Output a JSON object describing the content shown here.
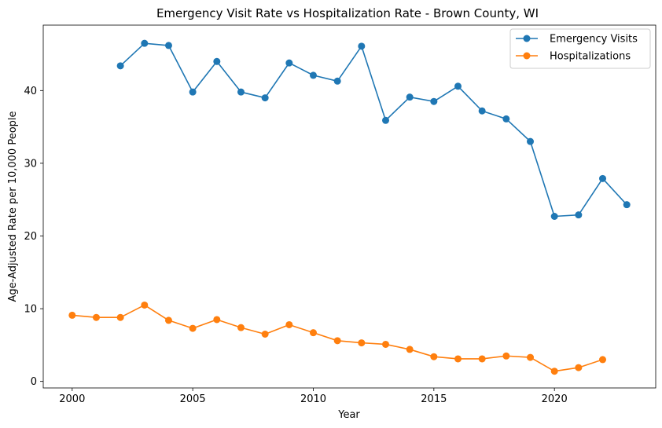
{
  "chart_data": {
    "type": "line",
    "title": "Emergency Visit Rate vs Hospitalization Rate - Brown County, WI",
    "xlabel": "Year",
    "ylabel": "Age-Adjusted Rate per 10,000 People",
    "xlim": [
      1998.8,
      2024.2
    ],
    "ylim": [
      -0.9,
      49.0
    ],
    "x_ticks": [
      2000,
      2005,
      2010,
      2015,
      2020
    ],
    "y_ticks": [
      0,
      10,
      20,
      30,
      40
    ],
    "grid": false,
    "legend_position": "top-right",
    "series": [
      {
        "name": "Emergency Visits",
        "color": "#1f77b4",
        "marker": "circle",
        "x": [
          2002,
          2003,
          2004,
          2005,
          2006,
          2007,
          2008,
          2009,
          2010,
          2011,
          2012,
          2013,
          2014,
          2015,
          2016,
          2017,
          2018,
          2019,
          2020,
          2021,
          2022,
          2023
        ],
        "y": [
          43.4,
          46.5,
          46.2,
          39.8,
          44.0,
          39.8,
          39.0,
          43.8,
          42.1,
          41.3,
          46.1,
          35.9,
          39.1,
          38.5,
          40.6,
          37.2,
          36.1,
          33.0,
          22.7,
          22.9,
          27.9,
          24.3
        ]
      },
      {
        "name": "Hospitalizations",
        "color": "#ff7f0e",
        "marker": "circle",
        "x": [
          2000,
          2001,
          2002,
          2003,
          2004,
          2005,
          2006,
          2007,
          2008,
          2009,
          2010,
          2011,
          2012,
          2013,
          2014,
          2015,
          2016,
          2017,
          2018,
          2019,
          2020,
          2021,
          2022
        ],
        "y": [
          9.1,
          8.8,
          8.8,
          10.5,
          8.4,
          7.3,
          8.5,
          7.4,
          6.5,
          7.8,
          6.7,
          5.6,
          5.3,
          5.1,
          4.4,
          3.4,
          3.1,
          3.1,
          3.5,
          3.3,
          1.4,
          1.9,
          3.0
        ]
      }
    ]
  }
}
